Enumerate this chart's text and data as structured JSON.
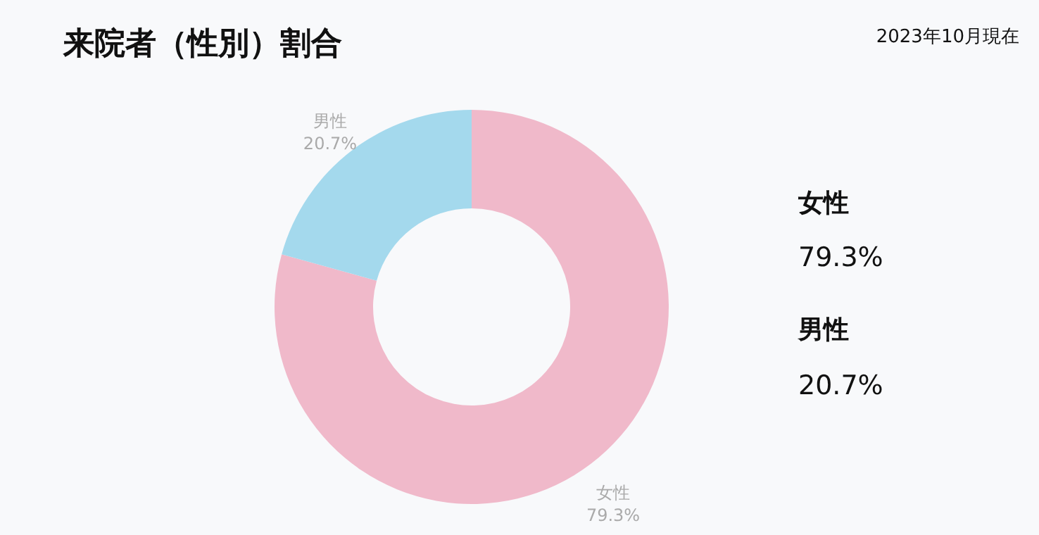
{
  "chart_data": {
    "type": "donut",
    "title": "来院者（性別）割合",
    "subtitle": "2023年10月現在",
    "categories": [
      "女性",
      "男性"
    ],
    "values": [
      79.3,
      20.7
    ],
    "colors": [
      "#f0b9ca",
      "#a4d9ed"
    ],
    "value_labels": [
      "79.3%",
      "20.7%"
    ],
    "annotations": [
      "女性",
      "79.3%",
      "男性",
      "20.7%"
    ]
  }
}
